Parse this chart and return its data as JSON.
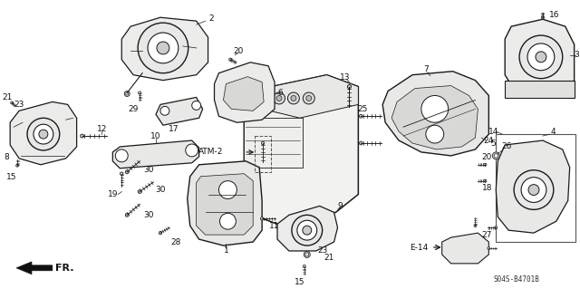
{
  "background_color": "#ffffff",
  "line_color": "#1a1a1a",
  "text_color": "#111111",
  "diagram_code": "S04S-B4701B",
  "fr_label": "FR.",
  "atm_label": "ATM-2",
  "e14_label": "E-14",
  "lw_main": 0.9,
  "lw_thin": 0.5,
  "fs_label": 6.5
}
